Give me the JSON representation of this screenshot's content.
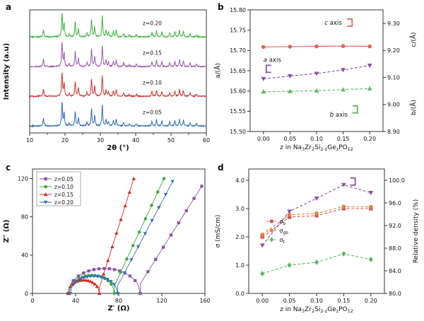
{
  "figure": {
    "background": "#ffffff"
  },
  "chart_data": [
    {
      "panel_letter": "a",
      "type": "line",
      "kind": "xrd-stack",
      "xlabel": "2θ (°)",
      "ylabel": "Intensity (a.u)",
      "xlim": [
        10,
        60
      ],
      "xticks": [
        10,
        20,
        30,
        40,
        50,
        60
      ],
      "series_order": "bottom-to-top",
      "series": [
        {
          "label": "z=0.05",
          "color": "#2f6db5"
        },
        {
          "label": "z=0.10",
          "color": "#d32f2f"
        },
        {
          "label": "z=0.15",
          "color": "#9c57ad"
        },
        {
          "label": "z=0.20",
          "color": "#3cb43c"
        }
      ],
      "peaks": [
        [
          13.9,
          0.3
        ],
        [
          19.15,
          1.0
        ],
        [
          19.75,
          0.55
        ],
        [
          21.2,
          0.12
        ],
        [
          22.9,
          0.62
        ],
        [
          23.8,
          0.34
        ],
        [
          26.2,
          0.18
        ],
        [
          27.5,
          0.72
        ],
        [
          28.4,
          0.42
        ],
        [
          30.55,
          0.88
        ],
        [
          31.6,
          0.26
        ],
        [
          32.3,
          0.18
        ],
        [
          33.7,
          0.22
        ],
        [
          34.5,
          0.28
        ],
        [
          36.6,
          0.16
        ],
        [
          38.2,
          0.08
        ],
        [
          40.2,
          0.1
        ],
        [
          44.6,
          0.2
        ],
        [
          45.9,
          0.26
        ],
        [
          47.4,
          0.2
        ],
        [
          49.6,
          0.16
        ],
        [
          51.1,
          0.22
        ],
        [
          52.4,
          0.28
        ],
        [
          53.5,
          0.24
        ],
        [
          55.4,
          0.14
        ],
        [
          57.2,
          0.1
        ]
      ]
    },
    {
      "panel_letter": "b",
      "type": "line",
      "xlabel_runs": [
        {
          "t": "z in Na"
        },
        {
          "s": "3"
        },
        {
          "t": "Zr"
        },
        {
          "s": "2"
        },
        {
          "t": "Si"
        },
        {
          "s": "2-z"
        },
        {
          "t": "Ge"
        },
        {
          "s": "z"
        },
        {
          "t": "PO"
        },
        {
          "s": "12"
        }
      ],
      "ylabel_left": "a/(Å)",
      "ylabel_right_top": "c/(Å)",
      "ylabel_right_bottom": "b/(Å)",
      "x": [
        0.0,
        0.05,
        0.1,
        0.15,
        0.2
      ],
      "xlim": [
        -0.025,
        0.225
      ],
      "ylim_left": [
        15.5,
        15.8
      ],
      "yticks_left": [
        15.5,
        15.55,
        15.6,
        15.65,
        15.7,
        15.75,
        15.8
      ],
      "ylim_right": [
        8.9,
        9.35
      ],
      "yticks_right": [
        8.9,
        9.0,
        9.1,
        9.2,
        9.3
      ],
      "series": [
        {
          "name": "c axis",
          "axis": "right",
          "marker": "circle",
          "color": "#e0635a",
          "dash": false,
          "values": [
            9.213,
            9.214,
            9.215,
            9.216,
            9.215
          ]
        },
        {
          "name": "a axis",
          "axis": "left",
          "marker": "triangle-down",
          "color": "#8a52a5",
          "dash": true,
          "values": [
            15.63,
            15.637,
            15.643,
            15.652,
            15.663
          ]
        },
        {
          "name": "b axis",
          "axis": "right",
          "marker": "triangle-up",
          "color": "#5cb85c",
          "dash": true,
          "values": [
            9.047,
            9.049,
            9.051,
            9.055,
            9.059
          ]
        }
      ],
      "annotations": [
        {
          "label": "a axis",
          "color": "#8a52a5",
          "pos": "left-mid"
        },
        {
          "label": "c axis",
          "color": "#e0635a",
          "pos": "top-right"
        },
        {
          "label": "b axis",
          "color": "#5cb85c",
          "pos": "bottom-right"
        }
      ]
    },
    {
      "panel_letter": "c",
      "type": "scatter",
      "kind": "nyquist",
      "xlabel": "Z′ (Ω)",
      "ylabel": "Z″ (Ω)",
      "xlim": [
        0,
        160
      ],
      "xticks": [
        0,
        40,
        80,
        120,
        160
      ],
      "ylim": [
        0,
        130
      ],
      "yticks": [
        0,
        40,
        80,
        120
      ],
      "legend_position": "top-left",
      "series": [
        {
          "label": "z=0.05",
          "color": "#8a52a5",
          "marker": "square",
          "arc": [
            33,
            100,
            26
          ],
          "spike": [
            [
              100,
              10
            ],
            [
              157,
              112
            ]
          ]
        },
        {
          "label": "z=0.10",
          "color": "#3aaa35",
          "marker": "circle",
          "arc": [
            34,
            76,
            19
          ],
          "spike": [
            [
              76,
              8
            ],
            [
              122,
              120
            ]
          ]
        },
        {
          "label": "z=0.15",
          "color": "#d42a21",
          "marker": "triangle-up",
          "arc": [
            33,
            62,
            14
          ],
          "spike": [
            [
              62,
              6
            ],
            [
              94,
              120
            ]
          ]
        },
        {
          "label": "z=0.20",
          "color": "#2e6fb7",
          "marker": "triangle-down",
          "arc": [
            35,
            79,
            18
          ],
          "spike": [
            [
              79,
              8
            ],
            [
              130,
              117
            ]
          ]
        }
      ]
    },
    {
      "panel_letter": "d",
      "type": "line",
      "xlabel_runs": [
        {
          "t": "z in Na"
        },
        {
          "s": "3"
        },
        {
          "t": "Zr"
        },
        {
          "s": "2"
        },
        {
          "t": "Si"
        },
        {
          "s": "2-z"
        },
        {
          "t": "Ge"
        },
        {
          "s": "z"
        },
        {
          "t": "PO"
        },
        {
          "s": "12"
        }
      ],
      "ylabel_left": "σ (mS/cm)",
      "ylabel_right": "Relative density (%)",
      "x": [
        0.0,
        0.05,
        0.1,
        0.15,
        0.2
      ],
      "xlim": [
        -0.025,
        0.225
      ],
      "ylim_left": [
        0,
        4.4
      ],
      "yticks_left": [
        0.0,
        1.0,
        2.0,
        3.0,
        4.0
      ],
      "ylim_right": [
        80,
        102
      ],
      "yticks_right": [
        80.0,
        84.0,
        88.0,
        92.0,
        96.0,
        100.0
      ],
      "annotation_bracket_color": "#8a52a5",
      "series": [
        {
          "runs": [
            {
              "t": "σ"
            },
            {
              "s": "b"
            }
          ],
          "label": "σb",
          "axis": "left",
          "marker": "square",
          "color": "#d9534f",
          "in_legend": true,
          "values": [
            2.0,
            2.7,
            2.75,
            3.0,
            3.0
          ]
        },
        {
          "runs": [
            {
              "t": "σ"
            },
            {
              "s": "gb"
            }
          ],
          "label": "σgb",
          "axis": "left",
          "marker": "circle",
          "color": "#e87f3a",
          "in_legend": true,
          "values": [
            2.08,
            2.78,
            2.83,
            3.07,
            3.06
          ]
        },
        {
          "runs": [
            {
              "t": "σ"
            },
            {
              "s": "t"
            }
          ],
          "label": "σt",
          "axis": "left",
          "marker": "diamond",
          "color": "#5cb85c",
          "in_legend": true,
          "values": [
            0.7,
            1.0,
            1.1,
            1.4,
            1.2
          ]
        },
        {
          "runs": [
            {
              "t": "Relative density"
            }
          ],
          "label": "Relative density",
          "axis": "right",
          "marker": "triangle-down",
          "color": "#8a52a5",
          "in_legend": false,
          "values": [
            88.5,
            94.5,
            96.8,
            99.2,
            97.8
          ]
        }
      ]
    }
  ]
}
